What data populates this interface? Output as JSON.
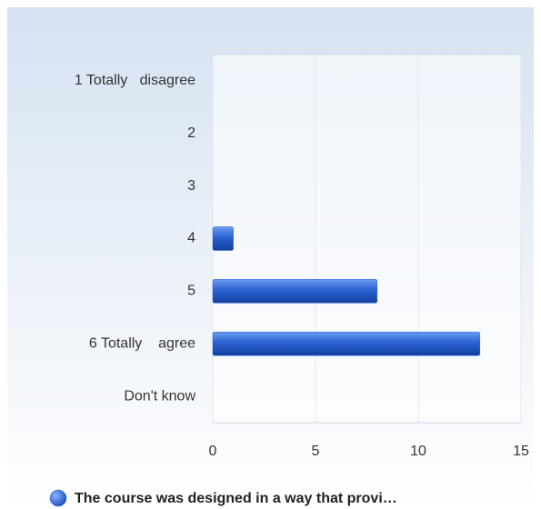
{
  "chart_data": {
    "type": "bar",
    "orientation": "horizontal",
    "categories": [
      "1 Totally   disagree",
      "2",
      "3",
      "4",
      "5",
      "6 Totally    agree",
      "Don't know"
    ],
    "series": [
      {
        "name": "The course was designed in a way that provi…",
        "color": "#2a62d2",
        "values": [
          0,
          0,
          0,
          1,
          8,
          13,
          0
        ]
      }
    ],
    "xlim": [
      0,
      15
    ],
    "xticks": [
      0,
      5,
      10,
      15
    ],
    "grid": true
  }
}
